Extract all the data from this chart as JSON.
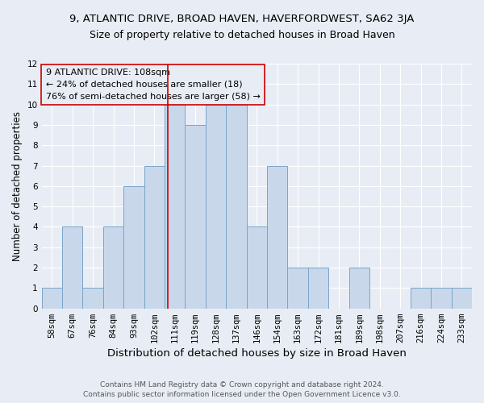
{
  "title1": "9, ATLANTIC DRIVE, BROAD HAVEN, HAVERFORDWEST, SA62 3JA",
  "title2": "Size of property relative to detached houses in Broad Haven",
  "xlabel": "Distribution of detached houses by size in Broad Haven",
  "ylabel": "Number of detached properties",
  "footnote1": "Contains HM Land Registry data © Crown copyright and database right 2024.",
  "footnote2": "Contains public sector information licensed under the Open Government Licence v3.0.",
  "bin_labels": [
    "58sqm",
    "67sqm",
    "76sqm",
    "84sqm",
    "93sqm",
    "102sqm",
    "111sqm",
    "119sqm",
    "128sqm",
    "137sqm",
    "146sqm",
    "154sqm",
    "163sqm",
    "172sqm",
    "181sqm",
    "189sqm",
    "198sqm",
    "207sqm",
    "216sqm",
    "224sqm",
    "233sqm"
  ],
  "bar_heights": [
    1,
    4,
    1,
    4,
    6,
    7,
    10,
    9,
    10,
    10,
    4,
    7,
    2,
    2,
    0,
    2,
    0,
    0,
    1,
    1,
    1
  ],
  "bar_color": "#c8d8ea",
  "bar_edgecolor": "#7aa4c8",
  "property_line_color": "#cc0000",
  "annotation_text": "9 ATLANTIC DRIVE: 108sqm\n← 24% of detached houses are smaller (18)\n76% of semi-detached houses are larger (58) →",
  "annotation_box_edgecolor": "#cc0000",
  "ylim": [
    0,
    12
  ],
  "yticks": [
    0,
    1,
    2,
    3,
    4,
    5,
    6,
    7,
    8,
    9,
    10,
    11,
    12
  ],
  "background_color": "#e8edf5",
  "axes_background": "#e8edf5",
  "grid_color": "#ffffff",
  "title1_fontsize": 9.5,
  "title2_fontsize": 9,
  "xlabel_fontsize": 9.5,
  "ylabel_fontsize": 8.5,
  "tick_fontsize": 7.5,
  "annot_fontsize": 8,
  "footnote_fontsize": 6.5
}
